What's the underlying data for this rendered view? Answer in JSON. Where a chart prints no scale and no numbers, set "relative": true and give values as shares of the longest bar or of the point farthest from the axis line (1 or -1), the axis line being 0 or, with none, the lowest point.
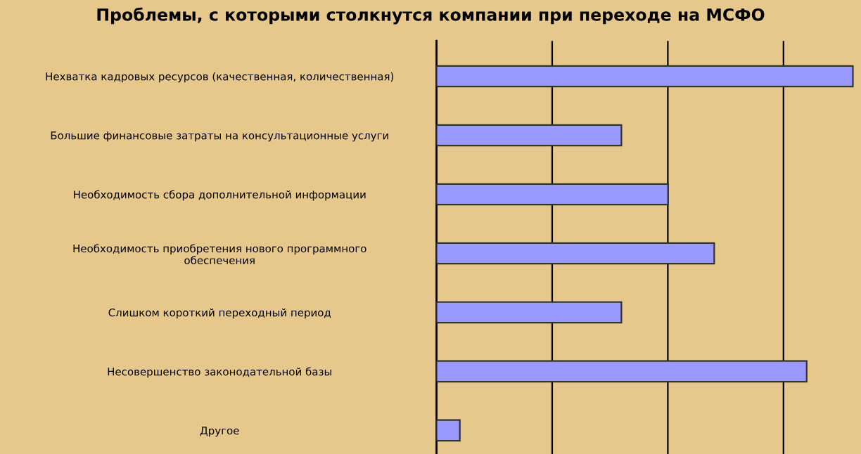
{
  "chart_data": {
    "type": "bar",
    "orientation": "horizontal",
    "relative": true,
    "title": "Проблемы, с которыми столкнутся компании при переходе на МСФО",
    "categories": [
      "Нехватка кадровых ресурсов (качественная, количественная)",
      "Большие финансовые затраты на консультационные услуги",
      "Необходимость сбора дополнительной информации",
      "Необходимость приобретения нового программного\nобеспечения",
      "Слишком короткий переходный период",
      "Несовершенство законодательной базы",
      "Другое"
    ],
    "values": [
      1,
      0.444,
      0.556,
      0.667,
      0.444,
      0.889,
      0.056
    ],
    "color": "#9999ff",
    "grid": "x"
  }
}
